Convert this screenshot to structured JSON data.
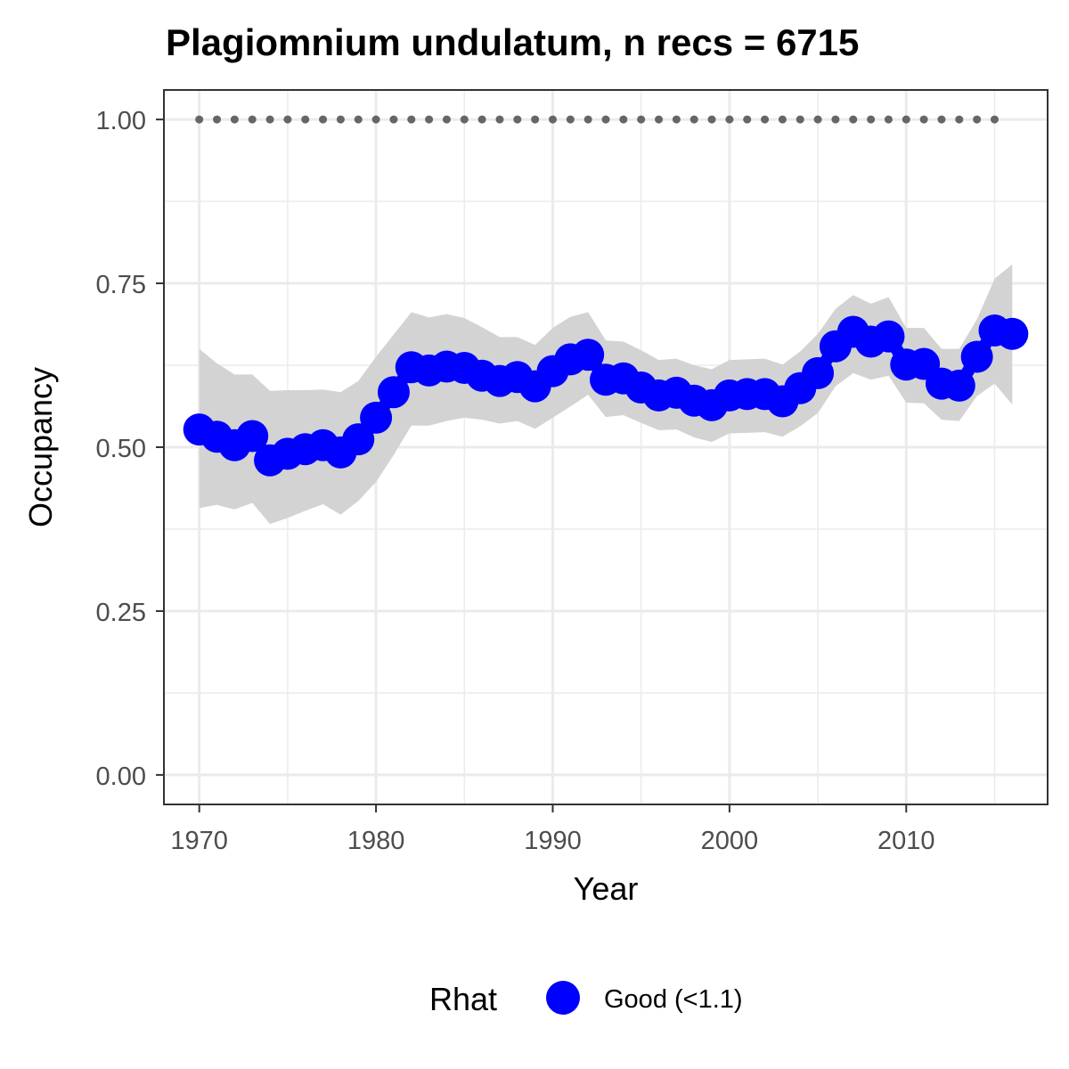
{
  "chart_data": {
    "type": "line",
    "title": "Plagiomnium undulatum, n recs = 6715",
    "xlabel": "Year",
    "ylabel": "Occupancy",
    "xlim": [
      1968,
      2018
    ],
    "ylim": [
      -0.045,
      1.045
    ],
    "x_ticks": [
      1970,
      1980,
      1990,
      2000,
      2010
    ],
    "x_tick_labels": [
      "1970",
      "1980",
      "1990",
      "2000",
      "2010"
    ],
    "y_ticks": [
      0,
      0.25,
      0.5,
      0.75,
      1.0
    ],
    "y_tick_labels": [
      "0.00",
      "0.25",
      "0.50",
      "0.75",
      "1.00"
    ],
    "grid": true,
    "legend": {
      "position": "bottom",
      "title": "Rhat",
      "items": [
        {
          "label": "Good (<1.1)",
          "color": "#0000ff"
        }
      ]
    },
    "series": [
      {
        "name": "Occupancy",
        "color": "#0000ff",
        "x": [
          1970,
          1971,
          1972,
          1973,
          1974,
          1975,
          1976,
          1977,
          1978,
          1979,
          1980,
          1981,
          1982,
          1983,
          1984,
          1985,
          1986,
          1987,
          1988,
          1989,
          1990,
          1991,
          1992,
          1993,
          1994,
          1995,
          1996,
          1997,
          1998,
          1999,
          2000,
          2001,
          2002,
          2003,
          2004,
          2005,
          2006,
          2007,
          2008,
          2009,
          2010,
          2011,
          2012,
          2013,
          2014,
          2015,
          2016
        ],
        "y": [
          0.527,
          0.516,
          0.503,
          0.517,
          0.48,
          0.49,
          0.497,
          0.503,
          0.492,
          0.512,
          0.545,
          0.584,
          0.622,
          0.617,
          0.623,
          0.621,
          0.609,
          0.601,
          0.607,
          0.593,
          0.616,
          0.634,
          0.641,
          0.603,
          0.605,
          0.591,
          0.579,
          0.583,
          0.571,
          0.564,
          0.579,
          0.581,
          0.581,
          0.57,
          0.59,
          0.613,
          0.654,
          0.676,
          0.661,
          0.669,
          0.626,
          0.627,
          0.597,
          0.594,
          0.638,
          0.678,
          0.673
        ],
        "lower": [
          0.407,
          0.412,
          0.405,
          0.415,
          0.383,
          0.392,
          0.403,
          0.413,
          0.397,
          0.418,
          0.447,
          0.488,
          0.533,
          0.533,
          0.54,
          0.545,
          0.542,
          0.536,
          0.54,
          0.528,
          0.545,
          0.562,
          0.58,
          0.546,
          0.549,
          0.537,
          0.526,
          0.527,
          0.515,
          0.508,
          0.521,
          0.522,
          0.523,
          0.516,
          0.532,
          0.552,
          0.593,
          0.613,
          0.603,
          0.609,
          0.568,
          0.567,
          0.542,
          0.54,
          0.578,
          0.597,
          0.565
        ],
        "upper": [
          0.65,
          0.628,
          0.611,
          0.611,
          0.586,
          0.587,
          0.587,
          0.588,
          0.584,
          0.601,
          0.638,
          0.672,
          0.706,
          0.698,
          0.703,
          0.697,
          0.683,
          0.668,
          0.668,
          0.656,
          0.682,
          0.699,
          0.706,
          0.663,
          0.661,
          0.648,
          0.633,
          0.635,
          0.625,
          0.619,
          0.633,
          0.634,
          0.635,
          0.626,
          0.646,
          0.673,
          0.711,
          0.732,
          0.719,
          0.729,
          0.682,
          0.682,
          0.65,
          0.65,
          0.695,
          0.757,
          0.779
        ]
      }
    ],
    "reference_points": {
      "color": "#666666",
      "x": [
        1970,
        1971,
        1972,
        1973,
        1974,
        1975,
        1976,
        1977,
        1978,
        1979,
        1980,
        1981,
        1982,
        1983,
        1984,
        1985,
        1986,
        1987,
        1988,
        1989,
        1990,
        1991,
        1992,
        1993,
        1994,
        1995,
        1996,
        1997,
        1998,
        1999,
        2000,
        2001,
        2002,
        2003,
        2004,
        2005,
        2006,
        2007,
        2008,
        2009,
        2010,
        2011,
        2012,
        2013,
        2014,
        2015
      ],
      "y": 1.0
    },
    "ribbon_color": "#d3d3d3",
    "grid_color": "#ebebeb",
    "panel_border_color": "#333333"
  }
}
